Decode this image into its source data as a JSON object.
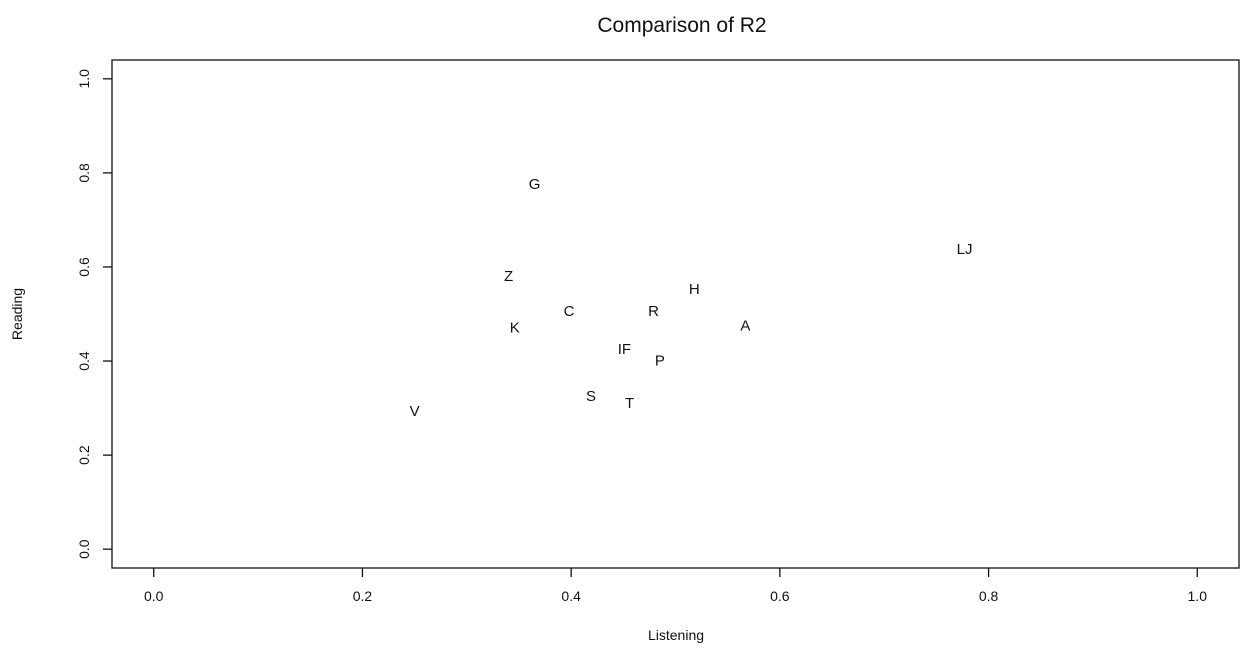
{
  "chart_data": {
    "type": "scatter",
    "title": "Comparison of R2",
    "xlabel": "Listening",
    "ylabel": "Reading",
    "xlim": [
      -0.04,
      1.04
    ],
    "ylim": [
      -0.04,
      1.04
    ],
    "xticks": [
      0.0,
      0.2,
      0.4,
      0.6,
      0.8,
      1.0
    ],
    "xtick_labels": [
      "0.0",
      "0.2",
      "0.4",
      "0.6",
      "0.8",
      "1.0"
    ],
    "yticks": [
      0.0,
      0.2,
      0.4,
      0.6,
      0.8,
      1.0
    ],
    "ytick_labels": [
      "0.0",
      "0.2",
      "0.4",
      "0.6",
      "0.8",
      "1.0"
    ],
    "grid": false,
    "legend": "none",
    "marker": "text-label",
    "points": [
      {
        "label": "G",
        "x": 0.365,
        "y": 0.775
      },
      {
        "label": "LJ",
        "x": 0.777,
        "y": 0.637
      },
      {
        "label": "Z",
        "x": 0.34,
        "y": 0.58
      },
      {
        "label": "H",
        "x": 0.518,
        "y": 0.552
      },
      {
        "label": "C",
        "x": 0.398,
        "y": 0.505
      },
      {
        "label": "R",
        "x": 0.479,
        "y": 0.505
      },
      {
        "label": "K",
        "x": 0.346,
        "y": 0.47
      },
      {
        "label": "A",
        "x": 0.567,
        "y": 0.474
      },
      {
        "label": "IF",
        "x": 0.451,
        "y": 0.425
      },
      {
        "label": "P",
        "x": 0.485,
        "y": 0.4
      },
      {
        "label": "S",
        "x": 0.419,
        "y": 0.325
      },
      {
        "label": "T",
        "x": 0.456,
        "y": 0.31
      },
      {
        "label": "V",
        "x": 0.25,
        "y": 0.293
      }
    ]
  }
}
